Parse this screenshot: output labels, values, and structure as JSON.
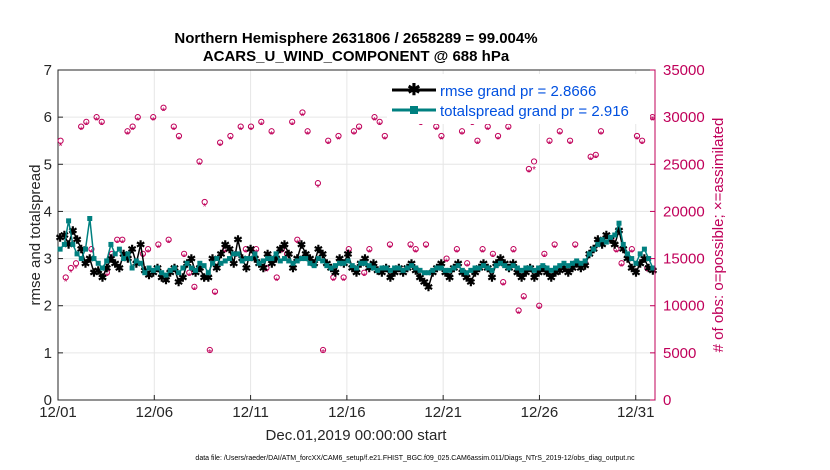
{
  "chart_data": {
    "type": "line",
    "title_line1": "Northern Hemisphere 2631806 / 2658289 = 99.004%",
    "title_line2": "ACARS_U_WIND_COMPONENT @ 688 hPa",
    "xlabel": "Dec.01,2019 00:00:00 start",
    "ylabel_left": "rmse and totalspread",
    "ylabel_right": "# of obs: o=possible; ×=assimilated",
    "footnote": "data file: /Users/raeder/DAI/ATM_forcXX/CAM6_setup/f.e21.FHIST_BGC.f09_025.CAM6assim.011/Diags_NTrS_2019-12/obs_diag_output.nc",
    "x_ticks": [
      "12/01",
      "12/06",
      "12/11",
      "12/16",
      "12/21",
      "12/26",
      "12/31"
    ],
    "x_tick_days": [
      1,
      6,
      11,
      16,
      21,
      26,
      31
    ],
    "xlim": [
      1,
      32
    ],
    "ylim_left": [
      0,
      7
    ],
    "y_ticks_left": [
      "0",
      "1",
      "2",
      "3",
      "4",
      "5",
      "6",
      "7"
    ],
    "ylim_right": [
      0,
      35000
    ],
    "y_ticks_right": [
      "0",
      "5000",
      "10000",
      "15000",
      "20000",
      "25000",
      "30000",
      "35000"
    ],
    "legend": [
      "rmse grand pr = 2.8666",
      "totalspread grand pr = 2.916"
    ],
    "colors": {
      "rmse": "#000000",
      "spread": "#008080",
      "obs": "#c0005a",
      "legend_text": "#0050e0",
      "grid": "#e6e6e6"
    },
    "series": [
      {
        "name": "rmse",
        "values": [
          3.45,
          3.5,
          3.3,
          3.6,
          3.4,
          3.2,
          2.9,
          3.0,
          2.7,
          2.75,
          2.6,
          2.8,
          3.0,
          2.9,
          2.8,
          3.1,
          3.0,
          3.2,
          2.9,
          3.3,
          2.75,
          2.65,
          2.7,
          2.8,
          2.6,
          2.55,
          2.7,
          2.8,
          2.5,
          2.6,
          2.9,
          3.0,
          2.7,
          2.8,
          2.6,
          2.6,
          3.0,
          2.8,
          3.1,
          3.3,
          3.2,
          2.9,
          3.4,
          3.0,
          2.8,
          3.2,
          3.0,
          2.9,
          2.8,
          3.1,
          2.9,
          3.0,
          3.2,
          3.3,
          3.1,
          2.8,
          3.0,
          3.3,
          3.1,
          3.0,
          2.9,
          3.2,
          3.1,
          2.9,
          2.8,
          2.7,
          3.0,
          2.9,
          3.1,
          2.8,
          2.7,
          2.9,
          3.0,
          2.8,
          2.9,
          2.75,
          2.7,
          2.8,
          2.6,
          2.7,
          2.8,
          2.7,
          2.8,
          2.9,
          2.75,
          2.6,
          2.5,
          2.4,
          2.7,
          2.8,
          2.9,
          2.7,
          2.6,
          2.8,
          2.9,
          2.7,
          2.6,
          2.5,
          2.7,
          2.8,
          2.9,
          2.8,
          2.6,
          2.9,
          3.0,
          2.9,
          2.8,
          2.9,
          2.7,
          2.6,
          2.7,
          2.8,
          2.6,
          2.7,
          2.8,
          2.7,
          2.6,
          2.7,
          2.75,
          2.8,
          2.7,
          2.8,
          2.9,
          2.8,
          2.85,
          3.1,
          3.2,
          3.4,
          3.3,
          3.5,
          3.4,
          3.3,
          3.6,
          3.2,
          3.0,
          2.8,
          2.7,
          2.9,
          3.0,
          2.8,
          2.75
        ]
      },
      {
        "name": "totalspread",
        "values": [
          3.2,
          3.3,
          3.8,
          3.3,
          3.1,
          3.0,
          3.2,
          3.85,
          3.0,
          2.9,
          2.8,
          2.95,
          3.3,
          3.1,
          3.2,
          3.0,
          3.1,
          2.8,
          2.95,
          2.9,
          2.7,
          2.8,
          2.75,
          2.8,
          2.7,
          2.65,
          2.75,
          2.8,
          2.7,
          2.8,
          2.9,
          2.8,
          2.75,
          2.9,
          2.85,
          2.7,
          2.9,
          3.0,
          2.9,
          2.95,
          3.0,
          3.1,
          3.1,
          2.95,
          3.0,
          3.0,
          3.1,
          2.9,
          2.95,
          3.0,
          3.0,
          3.1,
          2.95,
          3.0,
          2.95,
          2.9,
          2.95,
          3.0,
          3.0,
          2.9,
          2.85,
          3.0,
          2.95,
          2.85,
          2.8,
          2.85,
          2.9,
          2.9,
          2.95,
          2.85,
          2.8,
          2.9,
          2.9,
          2.85,
          2.8,
          2.75,
          2.8,
          2.8,
          2.75,
          2.8,
          2.8,
          2.75,
          2.8,
          2.85,
          2.8,
          2.75,
          2.7,
          2.7,
          2.75,
          2.8,
          2.8,
          2.75,
          2.75,
          2.8,
          2.85,
          2.75,
          2.7,
          2.75,
          2.8,
          2.8,
          2.85,
          2.8,
          2.75,
          2.85,
          2.9,
          2.85,
          2.8,
          2.85,
          2.8,
          2.75,
          2.8,
          2.8,
          2.75,
          2.8,
          2.85,
          2.8,
          2.75,
          2.8,
          2.85,
          2.9,
          2.85,
          2.9,
          2.95,
          2.9,
          2.95,
          3.1,
          3.2,
          3.3,
          3.4,
          3.35,
          3.45,
          3.5,
          3.75,
          3.3,
          3.1,
          3.0,
          2.9,
          3.1,
          3.2,
          3.0,
          2.8
        ]
      },
      {
        "name": "obs_possible",
        "values": [
          27500,
          13000,
          14000,
          14500,
          29000,
          29500,
          16000,
          30000,
          29500,
          13500,
          15500,
          17000,
          17000,
          28500,
          29000,
          30000,
          15500,
          16000,
          30000,
          16500,
          31000,
          17000,
          29000,
          28000,
          15500,
          13500,
          12000,
          25300,
          21000,
          5300,
          11500,
          27300,
          16000,
          28000,
          15500,
          29000,
          16000,
          29000,
          16000,
          29500,
          14000,
          28500,
          13000,
          16000,
          15500,
          29500,
          17000,
          30500,
          28500,
          14500,
          23000,
          5300,
          27500,
          13000,
          28000,
          13000,
          16000,
          28500,
          29000,
          13500,
          16000,
          30000,
          29500,
          28000,
          16500,
          30500,
          30500,
          30000,
          16500,
          16000,
          29500,
          16500,
          30500,
          29000,
          28000,
          15000,
          30000,
          16000,
          28500,
          14500,
          29500,
          27500,
          16000,
          29000,
          15500,
          28000,
          12500,
          29000,
          16000,
          9500,
          11000,
          24500,
          25300,
          10000,
          15500,
          27500,
          16500,
          28500,
          30000,
          27500,
          16500,
          30000,
          14500,
          25800,
          26000,
          28500,
          30000,
          17000,
          16000,
          14500,
          30000,
          16000,
          28000,
          27500,
          14000,
          30000
        ]
      },
      {
        "name": "obs_assimilated",
        "values": [
          27000,
          12600,
          13600,
          14000,
          28700,
          29200,
          15700,
          29700,
          29200,
          13200,
          15200,
          16700,
          16700,
          28200,
          28700,
          29700,
          15200,
          15700,
          29700,
          16200,
          30700,
          16700,
          28700,
          27700,
          15200,
          13200,
          11700,
          25000,
          20600,
          5100,
          11200,
          27000,
          15700,
          27700,
          15200,
          28700,
          15700,
          28700,
          15700,
          29200,
          13700,
          28200,
          12700,
          15700,
          15200,
          29200,
          16700,
          30200,
          28200,
          14200,
          22600,
          5100,
          27200,
          12700,
          27700,
          12700,
          15700,
          28200,
          28700,
          13200,
          15700,
          29700,
          29200,
          27700,
          16200,
          30200,
          30200,
          29700,
          16200,
          15700,
          29200,
          16200,
          30200,
          28700,
          27700,
          14700,
          29700,
          15700,
          28200,
          14200,
          29200,
          27200,
          15700,
          28700,
          15200,
          27700,
          12200,
          28700,
          15700,
          9200,
          10700,
          24200,
          24500,
          9700,
          15200,
          27200,
          16200,
          28200,
          29700,
          27200,
          16200,
          29700,
          14200,
          25500,
          25700,
          28200,
          29700,
          16700,
          15700,
          14200,
          29700,
          15700,
          27700,
          27200,
          13700,
          29700
        ]
      }
    ]
  }
}
